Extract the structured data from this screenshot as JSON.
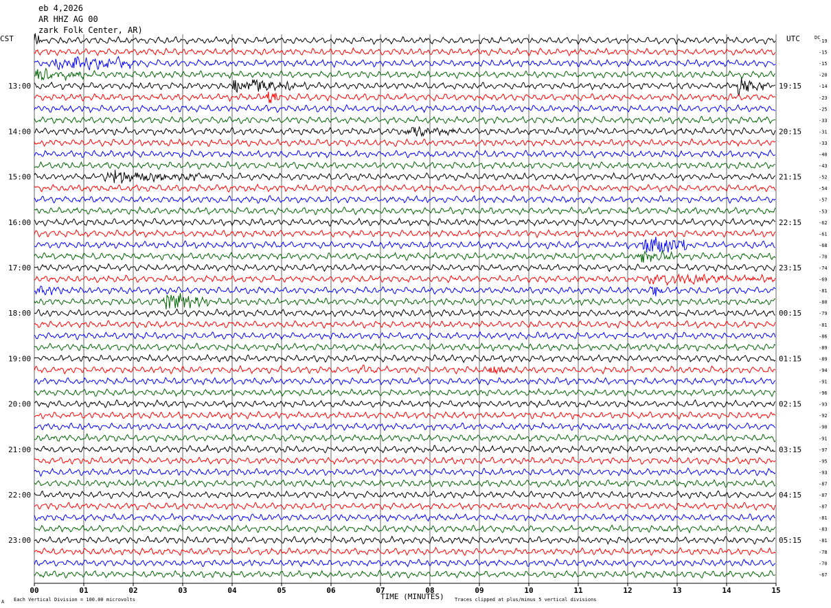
{
  "header": {
    "date": "eb 4,2026",
    "station": "AR HHZ AG 00",
    "location": "zark Folk Center, AR)",
    "left_tz": "CST",
    "right_tz": "UTC",
    "dc_label": "DC"
  },
  "footer": {
    "scale_note": "Each Vertical Division =  100.00 microvolts",
    "clip_note": "Traces clipped at plus/minus 5 vertical divisions",
    "corner_mark": "A"
  },
  "chart_data": {
    "type": "line",
    "title": "",
    "xlabel": "TIME (MINUTES)",
    "x_ticks": [
      "00",
      "01",
      "02",
      "03",
      "04",
      "05",
      "06",
      "07",
      "08",
      "09",
      "10",
      "11",
      "12",
      "13",
      "14",
      "15"
    ],
    "xlim": [
      0,
      15
    ],
    "grid": true,
    "trace_colors": [
      "#000000",
      "#ff0000",
      "#0000ff",
      "#006400"
    ],
    "left_hour_labels": [
      "13:00",
      "14:00",
      "15:00",
      "16:00",
      "17:00",
      "18:00",
      "19:00",
      "20:00",
      "21:00",
      "22:00",
      "23:00"
    ],
    "right_hour_labels": [
      "19:15",
      "20:15",
      "21:15",
      "22:15",
      "23:15",
      "00:15",
      "01:15",
      "02:15",
      "03:15",
      "04:15",
      "05:15"
    ],
    "dc_offsets": [
      -19,
      -15,
      -15,
      -20,
      -14,
      -23,
      -25,
      -33,
      -31,
      -33,
      -40,
      -43,
      -52,
      -54,
      -57,
      -53,
      -62,
      -61,
      -68,
      -70,
      -74,
      -69,
      -81,
      -80,
      -79,
      -81,
      -86,
      -89,
      -89,
      -94,
      -91,
      -96,
      -93,
      -92,
      -90,
      -91,
      -97,
      -95,
      -93,
      -87,
      -87,
      -87,
      -81,
      -83,
      -81,
      -78,
      -70,
      -67
    ],
    "events": [
      {
        "row": 0,
        "minute_start": 0.0,
        "minute_end": 0.15,
        "amplitude": "clipped"
      },
      {
        "row": 2,
        "minute_start": 0.4,
        "minute_end": 2.0,
        "amplitude": 1.9
      },
      {
        "row": 3,
        "minute_start": 0.0,
        "minute_end": 1.0,
        "amplitude": 1.4
      },
      {
        "row": 4,
        "minute_start": 4.0,
        "minute_end": 5.5,
        "amplitude": 2.0
      },
      {
        "row": 4,
        "minute_start": 14.2,
        "minute_end": 14.8,
        "amplitude": 2.0
      },
      {
        "row": 5,
        "minute_start": 4.7,
        "minute_end": 5.0,
        "amplitude": 1.8
      },
      {
        "row": 8,
        "minute_start": 7.5,
        "minute_end": 8.5,
        "amplitude": 1.2
      },
      {
        "row": 12,
        "minute_start": 1.4,
        "minute_end": 3.5,
        "amplitude": 1.5
      },
      {
        "row": 18,
        "minute_start": 12.3,
        "minute_end": 13.2,
        "amplitude": "clipped"
      },
      {
        "row": 19,
        "minute_start": 12.2,
        "minute_end": 13.0,
        "amplitude": 1.4
      },
      {
        "row": 21,
        "minute_start": 12.4,
        "minute_end": 15.0,
        "amplitude": 1.2
      },
      {
        "row": 22,
        "minute_start": 0.0,
        "minute_end": 0.6,
        "amplitude": 1.2
      },
      {
        "row": 22,
        "minute_start": 12.5,
        "minute_end": 12.7,
        "amplitude": "clipped"
      },
      {
        "row": 23,
        "minute_start": 2.6,
        "minute_end": 3.5,
        "amplitude": 2.6
      },
      {
        "row": 29,
        "minute_start": 6.6,
        "minute_end": 6.9,
        "amplitude": 1.2
      },
      {
        "row": 29,
        "minute_start": 9.2,
        "minute_end": 9.9,
        "amplitude": 1.1
      }
    ]
  }
}
